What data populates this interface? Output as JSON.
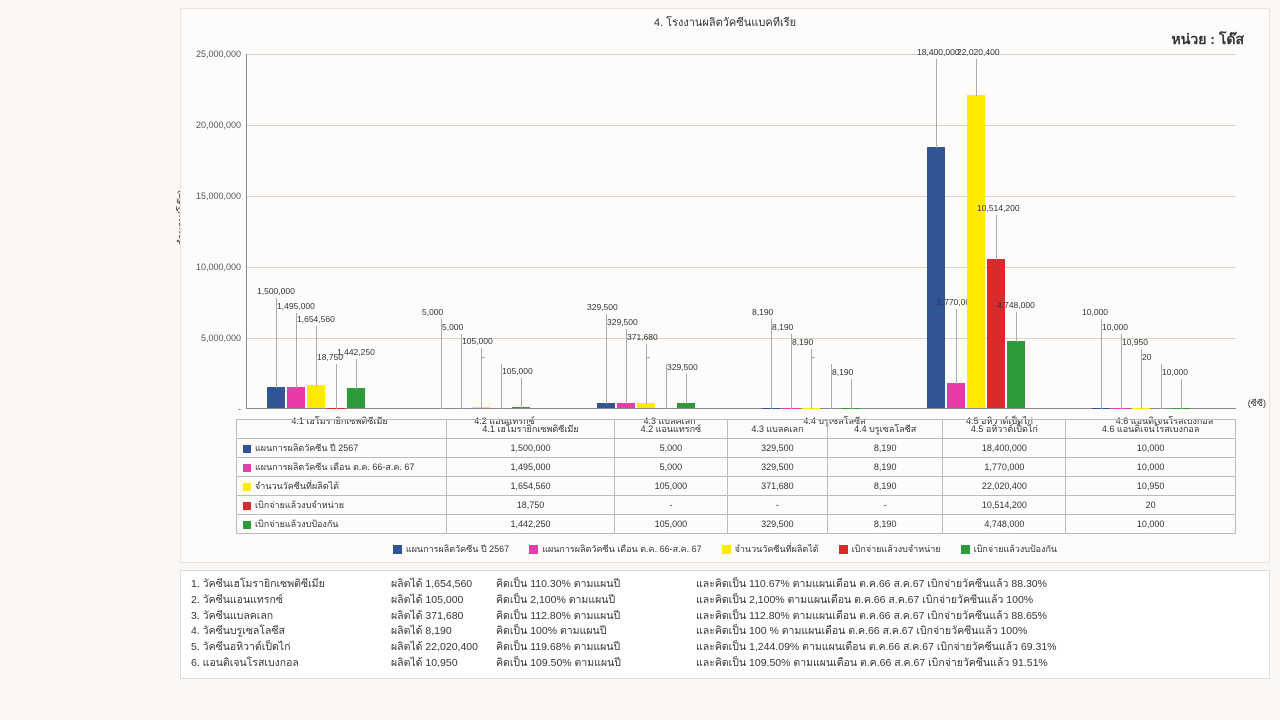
{
  "title": "4. โรงงานผลิตวัคซีนแบคทีเรีย",
  "unit_label": "หน่วย : โด๊ส",
  "yaxis_title": "จำนวน(โด๊ส)",
  "xaxis_unit_label": "(ซีซี)",
  "ymax": 25000000,
  "yticks": [
    0,
    5000000,
    10000000,
    15000000,
    20000000,
    25000000
  ],
  "ytick_labels": [
    "-",
    "5,000,000",
    "10,000,000",
    "15,000,000",
    "20,000,000",
    "25,000,000"
  ],
  "series": [
    {
      "key": "s1",
      "label": "แผนการผลิตวัคซีน ปี 2567",
      "color": "#2f5597"
    },
    {
      "key": "s2",
      "label": "แผนการผลิตวัคซีน เดือน ต.ค. 66-ส.ค. 67",
      "color": "#e83ba8"
    },
    {
      "key": "s3",
      "label": "จำนวนวัคซีนที่ผลิตได้",
      "color": "#ffea00"
    },
    {
      "key": "s4",
      "label": "เบิกจ่ายแล้วงบจำหน่าย",
      "color": "#d82a2a"
    },
    {
      "key": "s5",
      "label": "เบิกจ่ายแล้วงบป้องกัน",
      "color": "#2d9b3a"
    }
  ],
  "categories": [
    {
      "name": "4.1 เฮโมรายิกเซพติซีเมีย",
      "v": [
        1500000,
        1495000,
        1654560,
        18750,
        1442250
      ],
      "disp": [
        "1,500,000",
        "1,495,000",
        "1,654,560",
        "18,750",
        "1,442,250"
      ]
    },
    {
      "name": "4.2 แอนแทรกซ์",
      "v": [
        5000,
        5000,
        105000,
        null,
        105000
      ],
      "disp": [
        "5,000",
        "5,000",
        "105,000",
        "-",
        "105,000"
      ]
    },
    {
      "name": "4.3 แบลคเลก",
      "v": [
        329500,
        329500,
        371680,
        null,
        329500
      ],
      "disp": [
        "329,500",
        "329,500",
        "371,680",
        "-",
        "329,500"
      ]
    },
    {
      "name": "4.4 บรูเซลโลซีส",
      "v": [
        8190,
        8190,
        8190,
        null,
        8190
      ],
      "disp": [
        "8,190",
        "8,190",
        "8,190",
        "-",
        "8,190"
      ]
    },
    {
      "name": "4.5 อหิวาต์เป็ดไก่",
      "v": [
        18400000,
        1770000,
        22020400,
        10514200,
        4748000
      ],
      "disp": [
        "18,400,000",
        "1,770,000",
        "22,020,400",
        "10,514,200",
        "4,748,000"
      ]
    },
    {
      "name": "4.6 แอนติเจนโรสเบงกอล",
      "v": [
        10000,
        10000,
        10950,
        20,
        10000
      ],
      "disp": [
        "10,000",
        "10,000",
        "10,950",
        "20",
        "10,000"
      ]
    }
  ],
  "notes": [
    {
      "n": "1. วัคซีนเฮโมรายิกเซพติซีเมีย",
      "p": "ผลิตได้ 1,654,560",
      "pl": "คิดเป็น 110.30%  ตามแผนปี",
      "m": "และคิดเป็น 110.67%  ตามแผนเดือน ต.ค.66  ส.ค.67 เบิกจ่ายวัคซีนแล้ว 88.30%"
    },
    {
      "n": "2. วัคซีนแอนแทรกซ์",
      "p": "ผลิตได้ 105,000",
      "pl": "คิดเป็น 2,100%  ตามแผนปี",
      "m": "และคิดเป็น 2,100%  ตามแผนเดือน ต.ค.66  ส.ค.67 เบิกจ่ายวัคซีนแล้ว 100%"
    },
    {
      "n": "3. วัคซีนแบลคเลก",
      "p": "ผลิตได้ 371,680",
      "pl": "คิดเป็น 112.80%  ตามแผนปี",
      "m": "และคิดเป็น 112.80% ตามแผนเดือน ต.ค.66  ส.ค.67 เบิกจ่ายวัคซีนแล้ว 88.65%"
    },
    {
      "n": "4. วัคซีนบรูเซลโลซีส",
      "p": " ผลิตได้ 8,190",
      "pl": "คิดเป็น 100% ตามแผนปี",
      "m": "และคิดเป็น 100  % ตามแผนเดือน ต.ค.66  ส.ค.67 เบิกจ่ายวัคซีนแล้ว 100%"
    },
    {
      "n": "5. วัคซีนอหิวาต์เป็ดไก่",
      "p": "ผลิตได้ 22,020,400",
      "pl": "คิดเป็น 119.68%  ตามแผนปี",
      "m": "และคิดเป็น 1,244.09%  ตามแผนเดือน ต.ค.66  ส.ค.67 เบิกจ่ายวัคซีนแล้ว 69.31%"
    },
    {
      "n": "6. แอนติเจนโรสเบงกอล",
      "p": "ผลิตได้ 10,950",
      "pl": "คิดเป็น 109.50%  ตามแผนปี",
      "m": "และคิดเป็น 109.50% ตามแผนเดือน ต.ค.66  ส.ค.67 เบิกจ่ายวัคซีนแล้ว 91.51%"
    }
  ]
}
